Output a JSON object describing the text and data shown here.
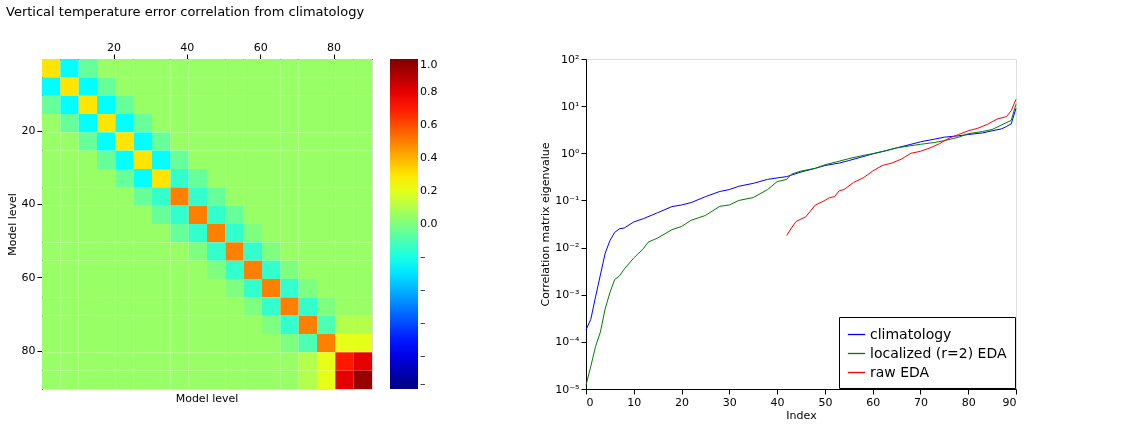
{
  "chart_data": [
    {
      "type": "heatmap",
      "title": "Vertical temperature error correlation from climatology",
      "xlabel": "Model level",
      "ylabel": "Model level",
      "x": [
        3,
        8,
        13,
        18,
        23,
        28,
        33,
        38,
        43,
        48,
        53,
        58,
        63,
        68,
        73,
        78,
        83,
        88
      ],
      "y": [
        3,
        8,
        13,
        18,
        23,
        28,
        33,
        38,
        43,
        48,
        53,
        58,
        63,
        68,
        73,
        78,
        83,
        88
      ],
      "xlim": [
        0.5,
        90.5
      ],
      "ylim": [
        90.5,
        0.5
      ],
      "xticks": [
        20,
        40,
        60,
        80
      ],
      "yticks": [
        20,
        40,
        60,
        80
      ],
      "clim": [
        -1.0,
        1.0
      ],
      "cticks": [
        {
          "value": 1.0,
          "label": "1.0"
        },
        {
          "value": 0.8,
          "label": "0.8"
        },
        {
          "value": 0.6,
          "label": "0.6"
        },
        {
          "value": 0.4,
          "label": "0.4"
        },
        {
          "value": 0.2,
          "label": "0.2"
        },
        {
          "value": 0.0,
          "label": "0.0"
        },
        {
          "value": -0.2,
          "label": "–"
        },
        {
          "value": -0.4,
          "label": "–"
        },
        {
          "value": -0.6,
          "label": "–"
        },
        {
          "value": -0.8,
          "label": "–"
        },
        {
          "value": -1.0,
          "label": "–"
        }
      ],
      "cells": [
        [
          0.3,
          -0.25,
          -0.05,
          0.05,
          0.05,
          0.05,
          0.05,
          0.05,
          0.05,
          0.05,
          0.05,
          0.05,
          0.05,
          0.05,
          0.05,
          0.05,
          0.05,
          0.05
        ],
        [
          -0.25,
          0.3,
          -0.25,
          -0.05,
          0.05,
          0.05,
          0.05,
          0.05,
          0.05,
          0.05,
          0.05,
          0.05,
          0.05,
          0.05,
          0.05,
          0.05,
          0.05,
          0.05
        ],
        [
          -0.05,
          -0.25,
          0.3,
          -0.25,
          -0.05,
          0.05,
          0.05,
          0.05,
          0.05,
          0.05,
          0.05,
          0.05,
          0.05,
          0.05,
          0.05,
          0.05,
          0.05,
          0.05
        ],
        [
          0.05,
          -0.05,
          -0.25,
          0.3,
          -0.25,
          -0.05,
          0.05,
          0.05,
          0.05,
          0.05,
          0.05,
          0.05,
          0.05,
          0.05,
          0.05,
          0.05,
          0.05,
          0.05
        ],
        [
          0.05,
          0.05,
          -0.05,
          -0.25,
          0.3,
          -0.25,
          -0.05,
          0.05,
          0.05,
          0.05,
          0.05,
          0.05,
          0.05,
          0.05,
          0.05,
          0.05,
          0.05,
          0.05
        ],
        [
          0.05,
          0.05,
          0.05,
          -0.05,
          -0.25,
          0.3,
          -0.25,
          -0.05,
          0.05,
          0.05,
          0.05,
          0.05,
          0.05,
          0.05,
          0.05,
          0.05,
          0.05,
          0.05
        ],
        [
          0.05,
          0.05,
          0.05,
          0.05,
          -0.05,
          -0.25,
          0.3,
          -0.15,
          -0.05,
          0.05,
          0.05,
          0.05,
          0.05,
          0.05,
          0.05,
          0.05,
          0.05,
          0.05
        ],
        [
          0.05,
          0.05,
          0.05,
          0.05,
          0.05,
          -0.05,
          -0.15,
          0.5,
          -0.15,
          -0.05,
          0.05,
          0.05,
          0.05,
          0.05,
          0.05,
          0.05,
          0.05,
          0.05
        ],
        [
          0.05,
          0.05,
          0.05,
          0.05,
          0.05,
          0.05,
          -0.05,
          -0.15,
          0.5,
          -0.15,
          -0.05,
          0.05,
          0.05,
          0.05,
          0.05,
          0.05,
          0.05,
          0.05
        ],
        [
          0.05,
          0.05,
          0.05,
          0.05,
          0.05,
          0.05,
          0.05,
          -0.05,
          -0.15,
          0.5,
          -0.15,
          0.0,
          0.05,
          0.05,
          0.05,
          0.05,
          0.05,
          0.05
        ],
        [
          0.05,
          0.05,
          0.05,
          0.05,
          0.05,
          0.05,
          0.05,
          0.05,
          0.0,
          -0.15,
          0.5,
          -0.15,
          0.0,
          0.05,
          0.05,
          0.05,
          0.05,
          0.05
        ],
        [
          0.05,
          0.05,
          0.05,
          0.05,
          0.05,
          0.05,
          0.05,
          0.05,
          0.05,
          0.0,
          -0.15,
          0.5,
          -0.15,
          0.0,
          0.05,
          0.05,
          0.05,
          0.05
        ],
        [
          0.05,
          0.05,
          0.05,
          0.05,
          0.05,
          0.05,
          0.05,
          0.05,
          0.05,
          0.05,
          0.0,
          -0.15,
          0.5,
          -0.15,
          0.0,
          0.05,
          0.05,
          0.05
        ],
        [
          0.05,
          0.05,
          0.05,
          0.05,
          0.05,
          0.05,
          0.05,
          0.05,
          0.05,
          0.05,
          0.05,
          0.0,
          -0.15,
          0.5,
          -0.15,
          0.0,
          0.05,
          0.05
        ],
        [
          0.05,
          0.05,
          0.05,
          0.05,
          0.05,
          0.05,
          0.05,
          0.05,
          0.05,
          0.05,
          0.05,
          0.05,
          0.0,
          -0.15,
          0.5,
          -0.1,
          0.1,
          0.1
        ],
        [
          0.05,
          0.05,
          0.05,
          0.05,
          0.05,
          0.05,
          0.05,
          0.05,
          0.05,
          0.05,
          0.05,
          0.05,
          0.05,
          0.0,
          -0.1,
          0.5,
          0.2,
          0.2
        ],
        [
          0.05,
          0.05,
          0.05,
          0.05,
          0.05,
          0.05,
          0.05,
          0.05,
          0.05,
          0.05,
          0.05,
          0.05,
          0.05,
          0.05,
          0.1,
          0.2,
          0.7,
          0.8
        ],
        [
          0.05,
          0.05,
          0.05,
          0.05,
          0.05,
          0.05,
          0.05,
          0.05,
          0.05,
          0.05,
          0.05,
          0.05,
          0.05,
          0.05,
          0.1,
          0.2,
          0.8,
          0.95
        ]
      ]
    },
    {
      "type": "line",
      "xlabel": "Index",
      "ylabel": "Correlation matrix eigenvalue",
      "log": "y",
      "legend": "bottom right",
      "grid": false,
      "xlim": [
        0,
        90
      ],
      "xticks": [
        0,
        10,
        20,
        30,
        40,
        50,
        60,
        70,
        80,
        90
      ],
      "ylim": [
        1e-05,
        100
      ],
      "yticks": [
        {
          "value": 1e-05,
          "label": "10⁻⁵"
        },
        {
          "value": 0.0001,
          "label": "10⁻⁴"
        },
        {
          "value": 0.001,
          "label": "10⁻³"
        },
        {
          "value": 0.01,
          "label": "10⁻²"
        },
        {
          "value": 0.1,
          "label": "10⁻¹"
        },
        {
          "value": 1,
          "label": "10⁰"
        },
        {
          "value": 10,
          "label": "10¹"
        },
        {
          "value": 100,
          "label": "10²"
        }
      ],
      "series": [
        {
          "name": "climatology",
          "color": "#0000ff",
          "x": [
            0,
            1,
            2,
            3,
            4,
            5,
            6,
            7,
            8,
            10,
            12,
            15,
            18,
            20,
            22,
            25,
            28,
            30,
            32,
            35,
            38,
            40,
            42,
            45,
            48,
            50,
            53,
            55,
            58,
            60,
            63,
            65,
            68,
            70,
            73,
            75,
            78,
            80,
            83,
            85,
            87,
            88,
            89,
            90
          ],
          "values": [
            0.00018,
            0.0003,
            0.0009,
            0.0026,
            0.0075,
            0.014,
            0.021,
            0.025,
            0.026,
            0.035,
            0.041,
            0.055,
            0.074,
            0.08,
            0.09,
            0.12,
            0.155,
            0.17,
            0.2,
            0.23,
            0.28,
            0.3,
            0.32,
            0.4,
            0.48,
            0.55,
            0.62,
            0.7,
            0.85,
            0.97,
            1.15,
            1.3,
            1.55,
            1.75,
            2.0,
            2.2,
            2.35,
            2.5,
            2.7,
            3.0,
            3.3,
            3.7,
            4.2,
            9
          ]
        },
        {
          "name": "localized (r=2) EDA",
          "color": "#008000",
          "x": [
            0,
            1,
            2,
            3,
            4,
            5,
            6,
            7,
            8,
            10,
            12,
            13,
            15,
            18,
            20,
            22,
            25,
            28,
            30,
            32,
            35,
            38,
            40,
            42,
            43,
            45,
            48,
            50,
            53,
            55,
            58,
            60,
            63,
            65,
            68,
            70,
            73,
            75,
            78,
            80,
            83,
            85,
            87,
            89,
            90
          ],
          "values": [
            1.2e-05,
            3e-05,
            8e-05,
            0.00016,
            0.0005,
            0.0011,
            0.0021,
            0.0025,
            0.0035,
            0.006,
            0.0095,
            0.013,
            0.016,
            0.024,
            0.028,
            0.038,
            0.048,
            0.075,
            0.08,
            0.1,
            0.115,
            0.17,
            0.25,
            0.28,
            0.36,
            0.42,
            0.48,
            0.57,
            0.68,
            0.77,
            0.9,
            0.98,
            1.15,
            1.3,
            1.45,
            1.55,
            1.7,
            1.85,
            2.2,
            2.6,
            2.9,
            3.2,
            4.0,
            5.0,
            11
          ]
        },
        {
          "name": "raw EDA",
          "color": "#ff0000",
          "x": [
            42,
            43,
            44,
            46,
            48,
            50,
            51,
            52,
            53,
            54,
            56,
            58,
            60,
            62,
            64,
            66,
            68,
            70,
            72,
            74,
            76,
            78,
            80,
            82,
            84,
            86,
            88,
            89,
            90
          ],
          "values": [
            0.018,
            0.026,
            0.036,
            0.045,
            0.08,
            0.1,
            0.115,
            0.12,
            0.16,
            0.17,
            0.24,
            0.3,
            0.42,
            0.55,
            0.62,
            0.75,
            1.0,
            1.1,
            1.3,
            1.6,
            2.1,
            2.5,
            3.0,
            3.4,
            4.1,
            5.3,
            6.0,
            8.0,
            14
          ]
        }
      ]
    }
  ]
}
